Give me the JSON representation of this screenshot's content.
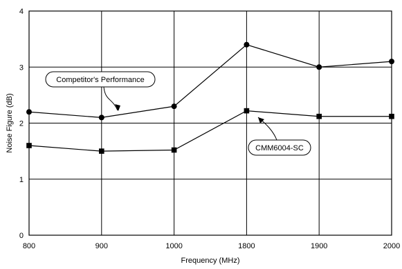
{
  "chart_data": {
    "type": "line",
    "categories": [
      "800",
      "900",
      "1000",
      "1800",
      "1900",
      "2000"
    ],
    "xlabel": "Frequency (MHz)",
    "ylabel": "Noise Figure (dB)",
    "ylim": [
      0,
      4
    ],
    "yticks": [
      "0",
      "1",
      "2",
      "3",
      "4"
    ],
    "grid": true,
    "series": [
      {
        "name": "Competitor's Performance",
        "values": [
          2.2,
          2.1,
          2.3,
          3.4,
          3.0,
          3.1
        ],
        "marker": "circle",
        "color": "#000000"
      },
      {
        "name": "CMM6004-SC",
        "values": [
          1.6,
          1.5,
          1.52,
          2.22,
          2.12,
          2.12
        ],
        "marker": "square",
        "color": "#000000"
      }
    ],
    "annotations": [
      {
        "text": "Competitor's Performance",
        "target_series": 0,
        "target_category": "900"
      },
      {
        "text": "CMM6004-SC",
        "target_series": 1,
        "target_category": "1800"
      }
    ]
  }
}
